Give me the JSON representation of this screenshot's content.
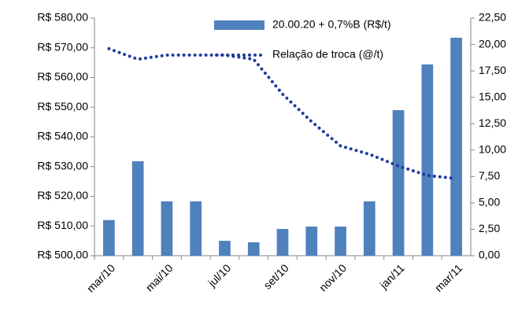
{
  "chart_data": {
    "type": "bar-line",
    "categories": [
      "mar/10",
      null,
      "mai/10",
      null,
      "jul/10",
      null,
      "set/10",
      null,
      "nov/10",
      null,
      "jan/11",
      null,
      "mar/11"
    ],
    "series": [
      {
        "name": "20.00.20 + 0,7%B (R$/t)",
        "color": "#4f81bd",
        "type": "bar",
        "axis": "y",
        "values": [
          512.0,
          531.8,
          518.3,
          518.3,
          505.0,
          504.5,
          509.0,
          509.8,
          509.8,
          518.3,
          549.0,
          564.4,
          573.4
        ]
      },
      {
        "name": "Relação de troca (@/t)",
        "color": "#1f3c9c",
        "type": "line",
        "axis": "y2",
        "values": [
          19.6,
          18.6,
          19.0,
          19.0,
          19.0,
          18.6,
          15.3,
          12.7,
          10.4,
          9.6,
          8.5,
          7.6,
          7.3
        ]
      }
    ],
    "ylim": [
      500,
      580
    ],
    "yticks": [
      {
        "value": 500,
        "label": "R$ 500,00"
      },
      {
        "value": 510,
        "label": "R$ 510,00"
      },
      {
        "value": 520,
        "label": "R$ 520,00"
      },
      {
        "value": 530,
        "label": "R$ 530,00"
      },
      {
        "value": 540,
        "label": "R$ 540,00"
      },
      {
        "value": 550,
        "label": "R$ 550,00"
      },
      {
        "value": 560,
        "label": "R$ 560,00"
      },
      {
        "value": 570,
        "label": "R$ 570,00"
      },
      {
        "value": 580,
        "label": "R$ 580,00"
      }
    ],
    "y2lim": [
      0,
      22.5
    ],
    "y2ticks": [
      {
        "value": 0,
        "label": "0,00"
      },
      {
        "value": 2.5,
        "label": "2,50"
      },
      {
        "value": 5,
        "label": "5,00"
      },
      {
        "value": 7.5,
        "label": "7,50"
      },
      {
        "value": 10,
        "label": "10,00"
      },
      {
        "value": 12.5,
        "label": "12,50"
      },
      {
        "value": 15,
        "label": "15,00"
      },
      {
        "value": 17.5,
        "label": "17,50"
      },
      {
        "value": 20,
        "label": "20,00"
      },
      {
        "value": 22.5,
        "label": "22,50"
      }
    ],
    "legend": "top"
  }
}
